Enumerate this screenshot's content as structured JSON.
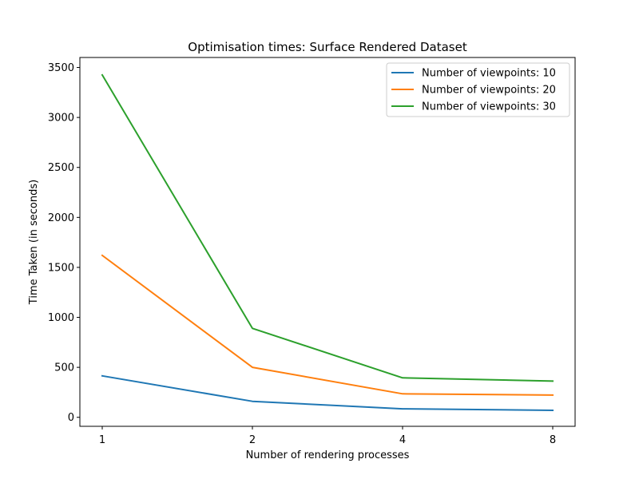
{
  "chart_data": {
    "type": "line",
    "title": "Optimisation times: Surface Rendered Dataset",
    "xlabel": "Number of rendering processes",
    "ylabel": "Time Taken (in seconds)",
    "x": [
      1,
      2,
      4,
      8
    ],
    "x_tick_labels": [
      "1",
      "2",
      "4",
      "8"
    ],
    "y_ticks": [
      0,
      500,
      1000,
      1500,
      2000,
      2500,
      3000,
      3500
    ],
    "ylim": [
      -90,
      3600
    ],
    "x_scale": "log2",
    "grid": false,
    "legend_position": "top-right",
    "series": [
      {
        "name": "Number of viewpoints: 10",
        "color": "#1f77b4",
        "values": [
          415,
          160,
          85,
          70
        ]
      },
      {
        "name": "Number of viewpoints: 20",
        "color": "#ff7f0e",
        "values": [
          1620,
          500,
          235,
          222
        ]
      },
      {
        "name": "Number of viewpoints: 30",
        "color": "#2ca02c",
        "values": [
          3425,
          890,
          395,
          362
        ]
      }
    ]
  }
}
